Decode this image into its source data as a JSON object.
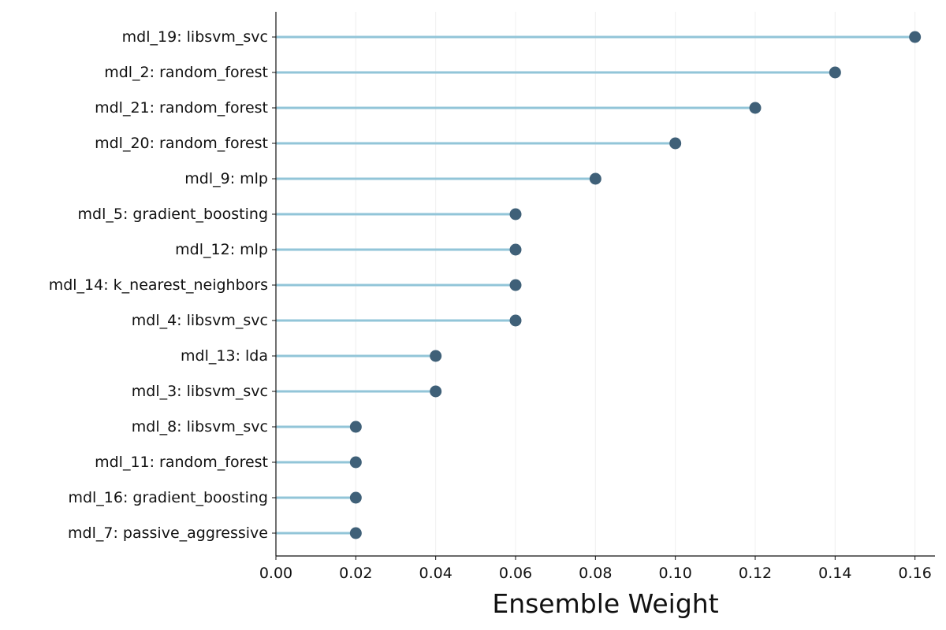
{
  "chart_data": {
    "type": "lollipop",
    "orientation": "horizontal",
    "title": "",
    "xlabel": "Ensemble Weight",
    "ylabel": "",
    "xlim": [
      0.0,
      0.165
    ],
    "xticks": [
      0.0,
      0.02,
      0.04,
      0.06,
      0.08,
      0.1,
      0.12,
      0.14,
      0.16
    ],
    "xtick_labels": [
      "0.00",
      "0.02",
      "0.04",
      "0.06",
      "0.08",
      "0.10",
      "0.12",
      "0.14",
      "0.16"
    ],
    "grid": "vertical, faint",
    "legend": "none",
    "categories": [
      "mdl_19: libsvm_svc",
      "mdl_2: random_forest",
      "mdl_21: random_forest",
      "mdl_20: random_forest",
      "mdl_9: mlp",
      "mdl_5: gradient_boosting",
      "mdl_12: mlp",
      "mdl_14: k_nearest_neighbors",
      "mdl_4: libsvm_svc",
      "mdl_13: lda",
      "mdl_3: libsvm_svc",
      "mdl_8: libsvm_svc",
      "mdl_11: random_forest",
      "mdl_16: gradient_boosting",
      "mdl_7: passive_aggressive"
    ],
    "values": [
      0.16,
      0.14,
      0.12,
      0.1,
      0.08,
      0.06,
      0.06,
      0.06,
      0.06,
      0.04,
      0.04,
      0.02,
      0.02,
      0.02,
      0.02
    ],
    "colors": {
      "stem": "#92c5d8",
      "marker": "#3f6078",
      "axis": "#111111",
      "grid": "#f0f0f0",
      "text": "#111111"
    }
  }
}
